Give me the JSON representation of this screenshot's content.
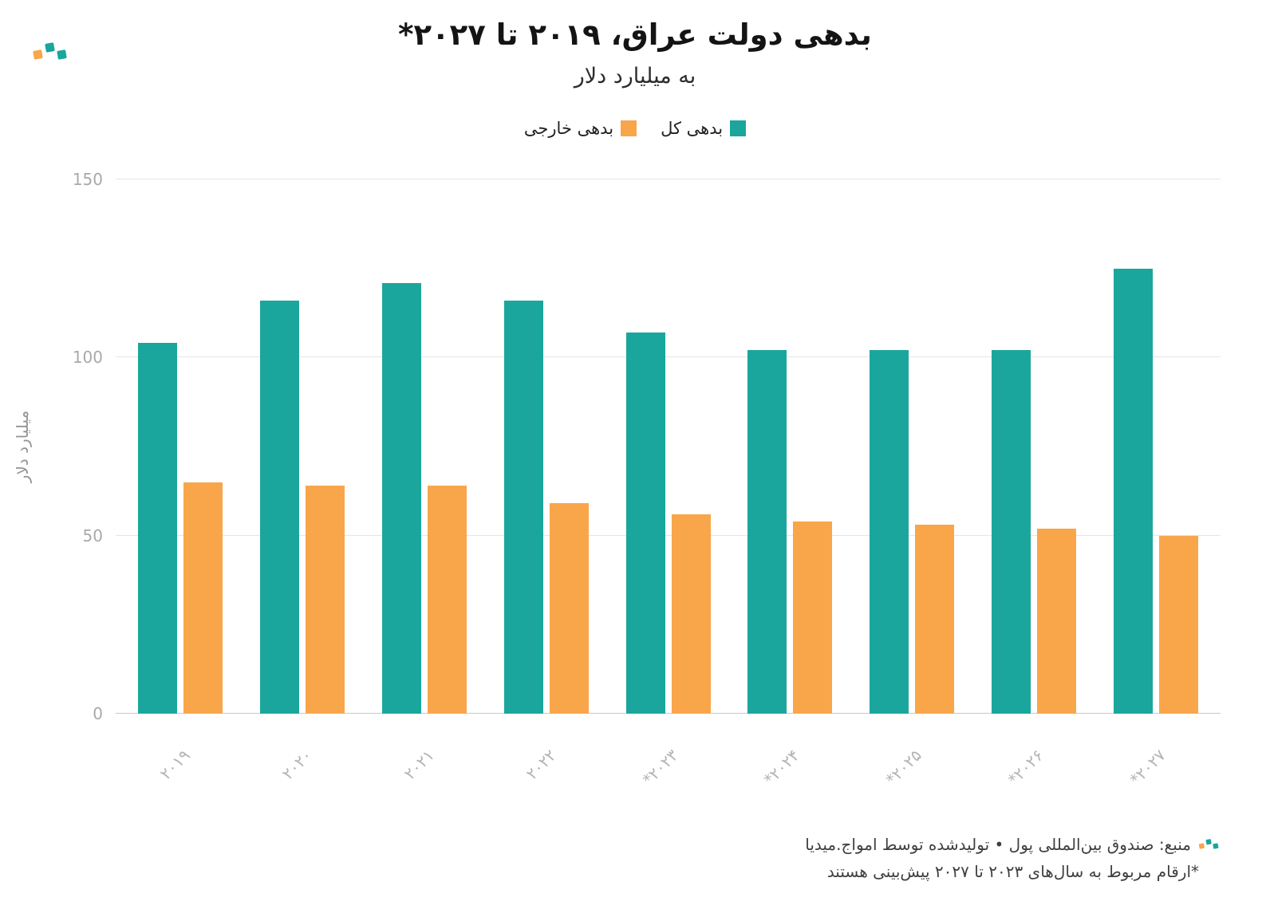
{
  "header": {
    "title": "بدهی دولت عراق، ۲۰۱۹ تا ۲۰۲۷*",
    "subtitle": "به میلیارد دلار"
  },
  "chart_data": {
    "type": "bar",
    "title": "بدهی دولت عراق، ۲۰۱۹ تا ۲۰۲۷*",
    "subtitle": "به میلیارد دلار",
    "categories": [
      "۲۰۱۹",
      "۲۰۲۰",
      "۲۰۲۱",
      "۲۰۲۲",
      "۲۰۲۳*",
      "۲۰۲۴*",
      "۲۰۲۵*",
      "۲۰۲۶*",
      "۲۰۲۷*"
    ],
    "series": [
      {
        "name": "بدهی کل",
        "color": "#1aa69d",
        "values": [
          104,
          116,
          121,
          116,
          107,
          102,
          102,
          102,
          125
        ]
      },
      {
        "name": "بدهی خارجی",
        "color": "#f9a64b",
        "values": [
          65,
          64,
          64,
          59,
          56,
          54,
          53,
          52,
          50
        ]
      }
    ],
    "xlabel": "",
    "ylabel": "میلیارد دلار",
    "ylim": [
      0,
      150
    ],
    "yticks": [
      0,
      50,
      100,
      150
    ],
    "grid": true,
    "legend_position": "top"
  },
  "footer": {
    "source": "منبع: صندوق بین‌المللی پول • تولیدشده توسط امواج.میدیا",
    "note": "*ارقام مربوط به سال‌های ۲۰۲۳ تا ۲۰۲۷ پیش‌بینی هستند"
  },
  "colors": {
    "total_debt": "#1aa69d",
    "external_debt": "#f9a64b",
    "grid": "#e5e5e5"
  }
}
